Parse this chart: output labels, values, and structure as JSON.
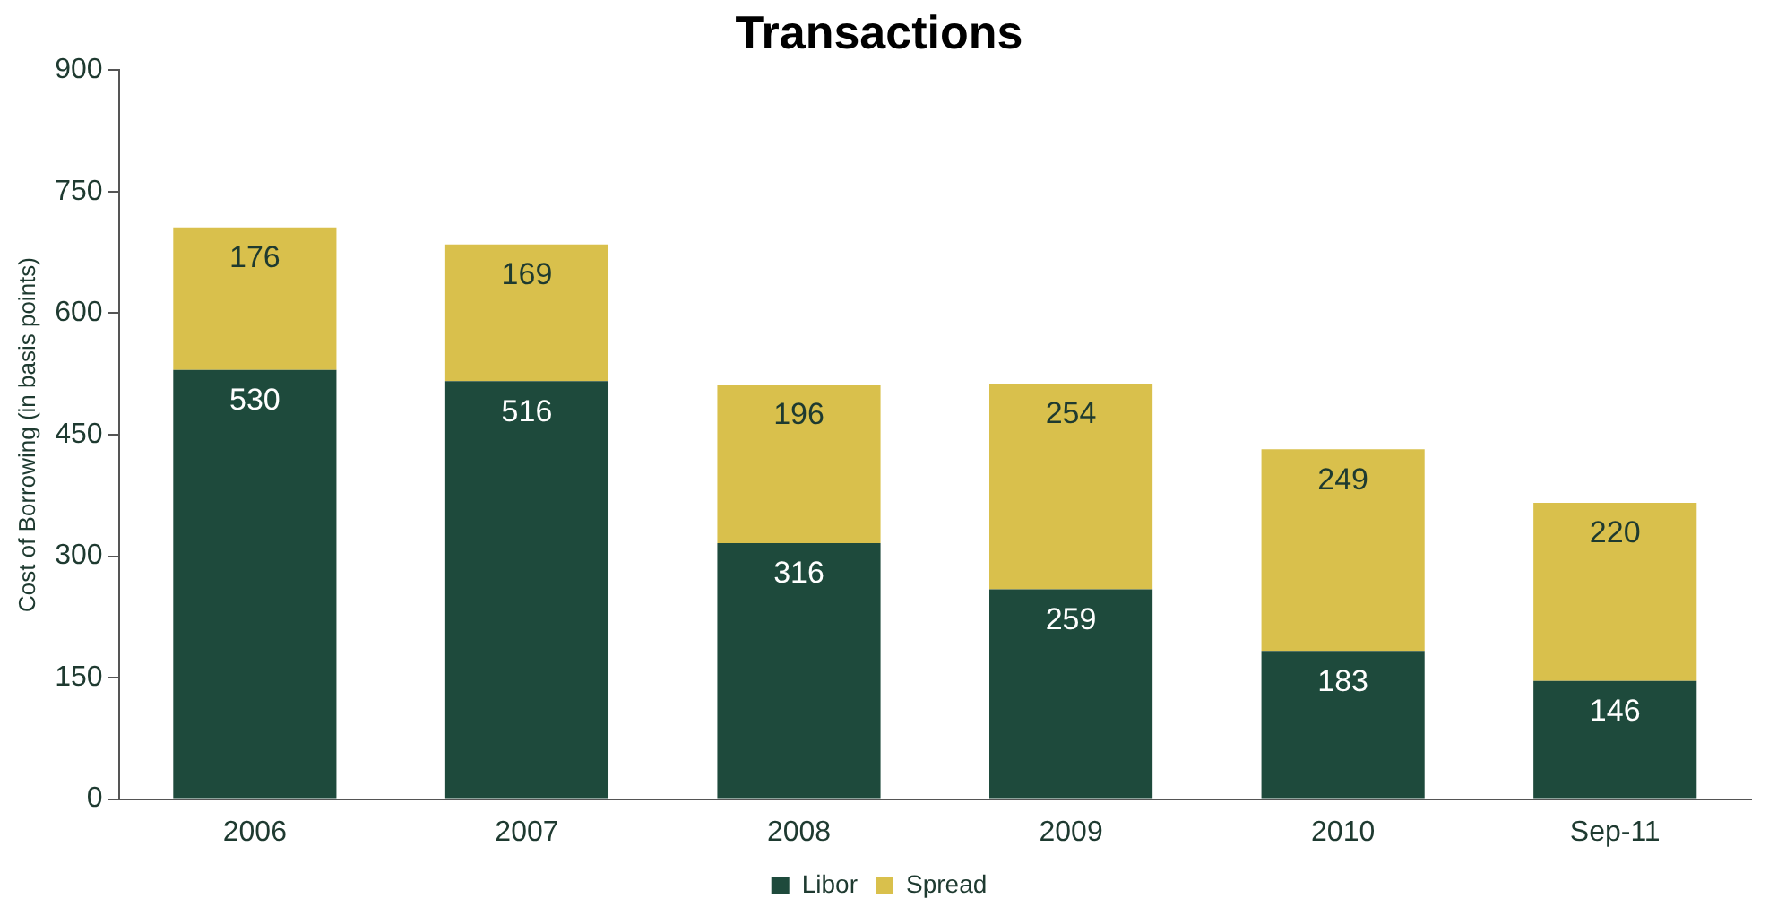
{
  "chart_data": {
    "type": "bar",
    "title": "Transactions",
    "ylabel": "Cost of Borrowing (in basis points)",
    "categories": [
      "2006",
      "2007",
      "2008",
      "2009",
      "2010",
      "Sep-11"
    ],
    "series": [
      {
        "name": "Libor",
        "color": "#1e4a3c",
        "values": [
          530,
          516,
          316,
          259,
          183,
          146
        ]
      },
      {
        "name": "Spread",
        "color": "#d9c04c",
        "values": [
          176,
          169,
          196,
          254,
          249,
          220
        ]
      }
    ],
    "stacked": true,
    "ylim": [
      0,
      900
    ],
    "yticks": [
      0,
      150,
      300,
      450,
      600,
      750,
      900
    ],
    "grid": false,
    "legend": "bottom",
    "data_labels": true
  }
}
